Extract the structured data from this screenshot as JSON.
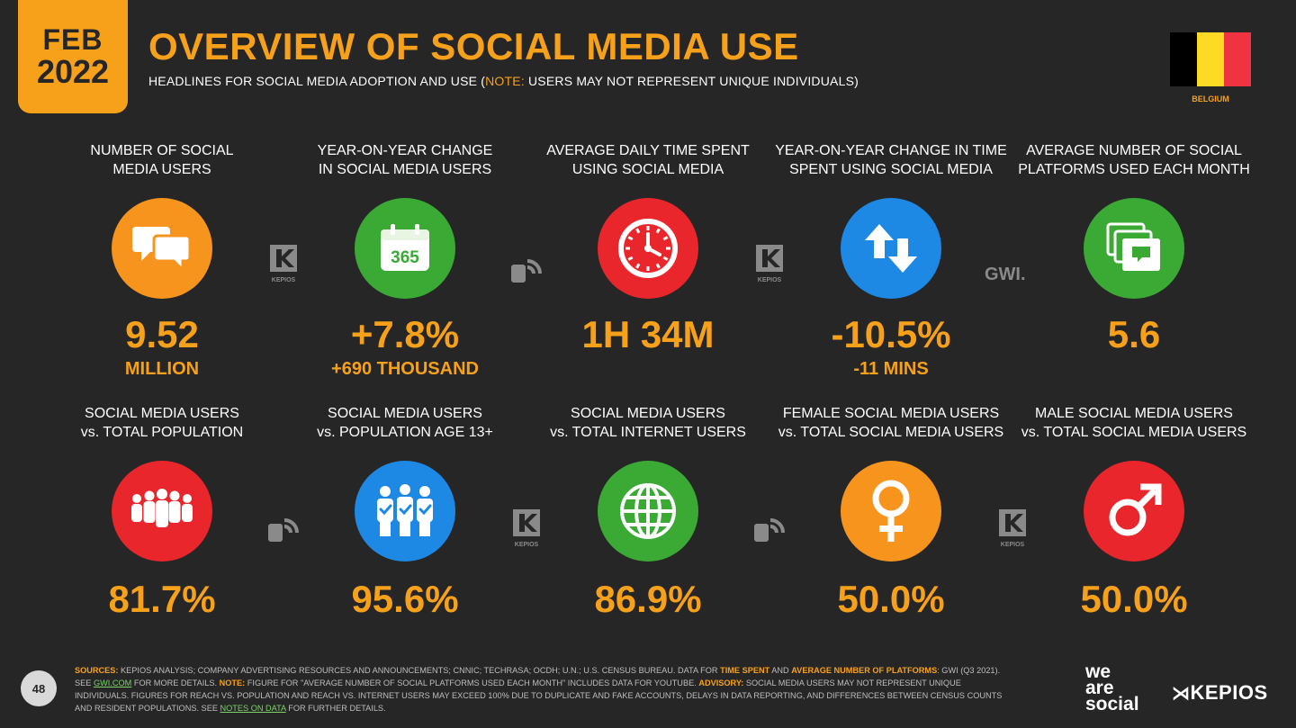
{
  "header": {
    "month": "FEB",
    "year": "2022",
    "title": "OVERVIEW OF SOCIAL MEDIA USE",
    "subtitle_pre": "HEADLINES FOR SOCIAL MEDIA ADOPTION AND USE (",
    "subtitle_note": "NOTE:",
    "subtitle_post": " USERS MAY NOT REPRESENT UNIQUE INDIVIDUALS)",
    "country": "BELGIUM",
    "flag_colors": [
      "#000000",
      "#FDDA24",
      "#EF3340"
    ]
  },
  "top_row": [
    {
      "label1": "NUMBER OF SOCIAL",
      "label2": "MEDIA USERS",
      "value": "9.52",
      "sub": "MILLION",
      "color": "#f7941d",
      "icon": "chat-bubbles-icon"
    },
    {
      "label1": "YEAR-ON-YEAR CHANGE",
      "label2": "IN SOCIAL MEDIA USERS",
      "value": "+7.8%",
      "sub": "+690 THOUSAND",
      "color": "#3aaa35",
      "icon": "calendar-365-icon",
      "icon_text": "365"
    },
    {
      "label1": "AVERAGE DAILY TIME SPENT",
      "label2": "USING SOCIAL MEDIA",
      "value": "1H 34M",
      "sub": "",
      "color": "#e8262b",
      "icon": "clock-icon"
    },
    {
      "label1": "YEAR-ON-YEAR CHANGE IN TIME",
      "label2": "SPENT USING SOCIAL MEDIA",
      "value": "-10.5%",
      "sub": "-11 MINS",
      "color": "#1e88e5",
      "icon": "up-down-arrows-icon"
    },
    {
      "label1": "AVERAGE NUMBER OF SOCIAL",
      "label2": "PLATFORMS USED EACH MONTH",
      "value": "5.6",
      "sub": "",
      "color": "#3aaa35",
      "icon": "stacked-windows-icon"
    }
  ],
  "bottom_row": [
    {
      "label1": "SOCIAL MEDIA USERS",
      "label2": "vs. TOTAL POPULATION",
      "value": "81.7%",
      "color": "#e8262b",
      "icon": "crowd-icon"
    },
    {
      "label1": "SOCIAL MEDIA USERS",
      "label2": "vs. POPULATION AGE 13+",
      "value": "95.6%",
      "color": "#1e88e5",
      "icon": "checked-people-icon"
    },
    {
      "label1": "SOCIAL MEDIA USERS",
      "label2": "vs. TOTAL INTERNET USERS",
      "value": "86.9%",
      "color": "#3aaa35",
      "icon": "globe-icon"
    },
    {
      "label1": "FEMALE SOCIAL MEDIA USERS",
      "label2": "vs. TOTAL SOCIAL MEDIA USERS",
      "value": "50.0%",
      "color": "#f7941d",
      "icon": "female-symbol-icon"
    },
    {
      "label1": "MALE SOCIAL MEDIA USERS",
      "label2": "vs. TOTAL SOCIAL MEDIA USERS",
      "value": "50.0%",
      "color": "#e8262b",
      "icon": "male-symbol-icon"
    }
  ],
  "source_logos": {
    "kepios_small": "KEPIOS",
    "gwi": "GWI."
  },
  "footer": {
    "page_number": "48",
    "s1": "SOURCES:",
    "s2": " KEPIOS ANALYSIS; COMPANY ADVERTISING RESOURCES AND ANNOUNCEMENTS; CNNIC; TECHRASA; OCDH; U.N.; U.S. CENSUS BUREAU. DATA FOR ",
    "s3": "TIME SPENT",
    "s4": " AND ",
    "s5": "AVERAGE NUMBER OF PLATFORMS",
    "s6": ": GWI (Q3 2021). SEE ",
    "s7": "GWI.COM",
    "s8": " FOR MORE DETAILS. ",
    "s9": "NOTE:",
    "s10": " FIGURE FOR \"AVERAGE NUMBER OF SOCIAL PLATFORMS USED EACH MONTH\" INCLUDES DATA FOR YOUTUBE. ",
    "s11": "ADVISORY:",
    "s12": " SOCIAL MEDIA USERS MAY NOT REPRESENT UNIQUE INDIVIDUALS. FIGURES FOR REACH vs. POPULATION AND REACH vs. INTERNET USERS MAY EXCEED 100% DUE TO DUPLICATE AND FAKE ACCOUNTS, DELAYS IN DATA REPORTING, AND DIFFERENCES BETWEEN CENSUS COUNTS AND RESIDENT POPULATIONS. SEE ",
    "s13": "NOTES ON DATA",
    "s14": " FOR FURTHER DETAILS.",
    "was1": "we",
    "was2": "are",
    "was3": "social",
    "kepios": "KEPIOS"
  }
}
